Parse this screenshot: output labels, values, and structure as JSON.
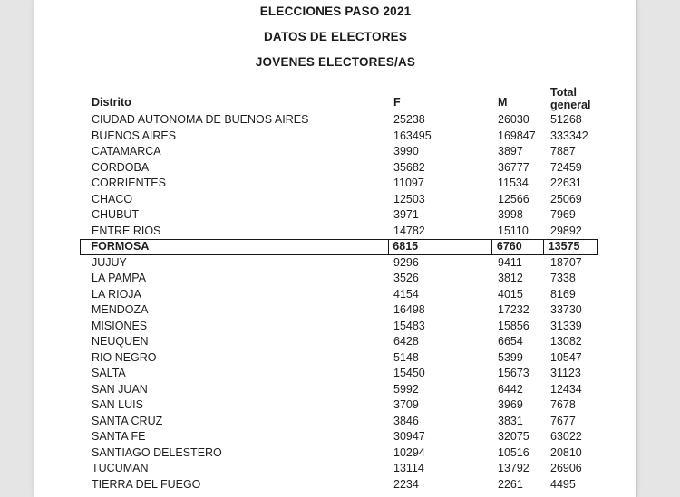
{
  "document": {
    "titles": [
      "ELECCIONES PASO 2021",
      "DATOS DE ELECTORES",
      "JOVENES ELECTORES/AS"
    ]
  },
  "table": {
    "header": {
      "distrito": "Distrito",
      "f": "F",
      "m": "M",
      "total": "Total general"
    },
    "selected_row": "FORMOSA",
    "rows": [
      {
        "distrito": "CIUDAD AUTONOMA DE BUENOS AIRES",
        "f": "25238",
        "m": "26030",
        "total": "51268"
      },
      {
        "distrito": "BUENOS AIRES",
        "f": "163495",
        "m": "169847",
        "total": "333342"
      },
      {
        "distrito": "CATAMARCA",
        "f": "3990",
        "m": "3897",
        "total": "7887"
      },
      {
        "distrito": "CORDOBA",
        "f": "35682",
        "m": "36777",
        "total": "72459"
      },
      {
        "distrito": "CORRIENTES",
        "f": "11097",
        "m": "11534",
        "total": "22631"
      },
      {
        "distrito": "CHACO",
        "f": "12503",
        "m": "12566",
        "total": "25069"
      },
      {
        "distrito": "CHUBUT",
        "f": "3971",
        "m": "3998",
        "total": "7969"
      },
      {
        "distrito": "ENTRE RIOS",
        "f": "14782",
        "m": "15110",
        "total": "29892"
      },
      {
        "distrito": "FORMOSA",
        "f": "6815",
        "m": "6760",
        "total": "13575"
      },
      {
        "distrito": "JUJUY",
        "f": "9296",
        "m": "9411",
        "total": "18707"
      },
      {
        "distrito": "LA PAMPA",
        "f": "3526",
        "m": "3812",
        "total": "7338"
      },
      {
        "distrito": "LA RIOJA",
        "f": "4154",
        "m": "4015",
        "total": "8169"
      },
      {
        "distrito": "MENDOZA",
        "f": "16498",
        "m": "17232",
        "total": "33730"
      },
      {
        "distrito": "MISIONES",
        "f": "15483",
        "m": "15856",
        "total": "31339"
      },
      {
        "distrito": "NEUQUEN",
        "f": "6428",
        "m": "6654",
        "total": "13082"
      },
      {
        "distrito": "RIO NEGRO",
        "f": "5148",
        "m": "5399",
        "total": "10547"
      },
      {
        "distrito": "SALTA",
        "f": "15450",
        "m": "15673",
        "total": "31123"
      },
      {
        "distrito": "SAN JUAN",
        "f": "5992",
        "m": "6442",
        "total": "12434"
      },
      {
        "distrito": "SAN LUIS",
        "f": "3709",
        "m": "3969",
        "total": "7678"
      },
      {
        "distrito": "SANTA CRUZ",
        "f": "3846",
        "m": "3831",
        "total": "7677"
      },
      {
        "distrito": "SANTA FE",
        "f": "30947",
        "m": "32075",
        "total": "63022"
      },
      {
        "distrito": "SANTIAGO DELESTERO",
        "f": "10294",
        "m": "10516",
        "total": "20810"
      },
      {
        "distrito": "TUCUMAN",
        "f": "13114",
        "m": "13792",
        "total": "26906"
      },
      {
        "distrito": "TIERRA DEL FUEGO",
        "f": "2234",
        "m": "2261",
        "total": "4495"
      }
    ]
  }
}
